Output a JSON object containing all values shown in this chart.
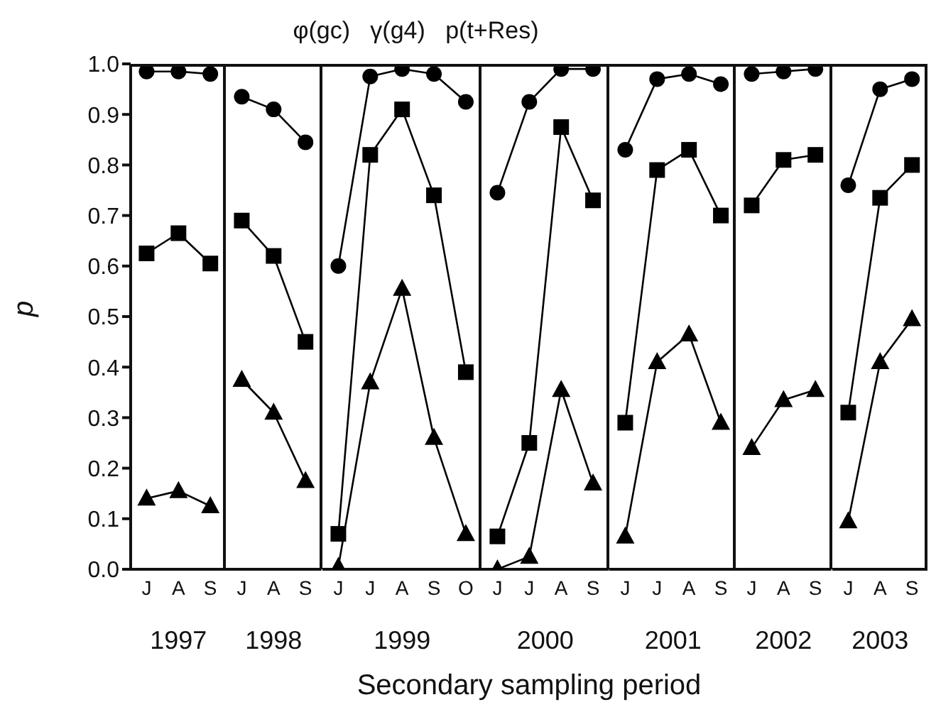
{
  "chart_data": [
    {
      "type": "line",
      "xlabel": "1997",
      "ylabel": "p",
      "categories": [
        "J",
        "A",
        "S"
      ],
      "ylim": [
        0,
        1
      ],
      "yticks": [
        {
          "value": 0,
          "label": "0.0"
        },
        0.1,
        0.2,
        0.3,
        0.4,
        0.5,
        0.6,
        0.7,
        0.8,
        0.9,
        {
          "value": 1,
          "label": "1.0"
        }
      ],
      "grid": false,
      "legend": false,
      "series": [
        {
          "color": "#000000",
          "marker": "circle",
          "values": [
            0.985,
            0.985,
            0.98
          ]
        },
        {
          "color": "#000000",
          "marker": "square",
          "values": [
            0.625,
            0.665,
            0.605
          ]
        },
        {
          "color": "#000000",
          "marker": "triangle",
          "values": [
            0.14,
            0.155,
            0.125
          ]
        }
      ]
    },
    {
      "type": "line",
      "xlabel": "1998",
      "categories": [
        "J",
        "A",
        "S"
      ],
      "ylim": [
        0,
        1
      ],
      "tick_labels": "x",
      "grid": false,
      "legend": false,
      "series": [
        {
          "color": "#000000",
          "marker": "circle",
          "values": [
            0.935,
            0.91,
            0.845
          ]
        },
        {
          "color": "#000000",
          "marker": "square",
          "values": [
            0.69,
            0.62,
            0.45
          ]
        },
        {
          "color": "#000000",
          "marker": "triangle",
          "values": [
            0.375,
            0.31,
            0.175
          ]
        }
      ]
    },
    {
      "type": "line",
      "title": "φ(gc)   γ(g4)   p(t+Res)",
      "xlabel": "1999",
      "categories": [
        "J",
        "J",
        "A",
        "S",
        "O"
      ],
      "ylim": [
        0,
        1
      ],
      "tick_labels": "x",
      "grid": false,
      "legend": false,
      "series": [
        {
          "color": "#000000",
          "marker": "circle",
          "values": [
            0.6,
            0.975,
            0.99,
            0.98,
            0.925
          ]
        },
        {
          "color": "#000000",
          "marker": "square",
          "values": [
            0.07,
            0.82,
            0.91,
            0.74,
            0.39
          ]
        },
        {
          "color": "#000000",
          "marker": "triangle",
          "values": [
            0.005,
            0.37,
            0.555,
            0.26,
            0.07
          ]
        }
      ]
    },
    {
      "type": "line",
      "xlabel": "2000",
      "annotations": [
        "Secondary sampling period"
      ],
      "categories": [
        "J",
        "J",
        "A",
        "S"
      ],
      "ylim": [
        0,
        1
      ],
      "tick_labels": "x",
      "grid": false,
      "legend": false,
      "series": [
        {
          "color": "#000000",
          "marker": "circle",
          "values": [
            0.745,
            0.925,
            0.99,
            0.99
          ]
        },
        {
          "color": "#000000",
          "marker": "square",
          "values": [
            0.065,
            0.25,
            0.875,
            0.73
          ]
        },
        {
          "color": "#000000",
          "marker": "triangle",
          "values": [
            0.0,
            0.025,
            0.355,
            0.17
          ]
        }
      ]
    },
    {
      "type": "line",
      "xlabel": "2001",
      "categories": [
        "J",
        "J",
        "A",
        "S"
      ],
      "ylim": [
        0,
        1
      ],
      "tick_labels": "x",
      "grid": false,
      "legend": false,
      "series": [
        {
          "color": "#000000",
          "marker": "circle",
          "values": [
            0.83,
            0.97,
            0.98,
            0.96
          ]
        },
        {
          "color": "#000000",
          "marker": "square",
          "values": [
            0.29,
            0.79,
            0.83,
            0.7
          ]
        },
        {
          "color": "#000000",
          "marker": "triangle",
          "values": [
            0.065,
            0.41,
            0.465,
            0.29
          ]
        }
      ]
    },
    {
      "type": "line",
      "xlabel": "2002",
      "categories": [
        "J",
        "A",
        "S"
      ],
      "ylim": [
        0,
        1
      ],
      "tick_labels": "x",
      "grid": false,
      "legend": false,
      "series": [
        {
          "color": "#000000",
          "marker": "circle",
          "values": [
            0.98,
            0.985,
            0.99
          ]
        },
        {
          "color": "#000000",
          "marker": "square",
          "values": [
            0.72,
            0.81,
            0.82
          ]
        },
        {
          "color": "#000000",
          "marker": "triangle",
          "values": [
            0.24,
            0.335,
            0.355
          ]
        }
      ]
    },
    {
      "type": "line",
      "xlabel": "2003",
      "categories": [
        "J",
        "A",
        "S"
      ],
      "ylim": [
        0,
        1
      ],
      "tick_labels": "x",
      "grid": false,
      "legend": false,
      "series": [
        {
          "color": "#000000",
          "marker": "circle",
          "values": [
            0.76,
            0.95,
            0.97
          ]
        },
        {
          "color": "#000000",
          "marker": "square",
          "values": [
            0.31,
            0.735,
            0.8
          ]
        },
        {
          "color": "#000000",
          "marker": "triangle",
          "values": [
            0.095,
            0.41,
            0.495
          ]
        }
      ]
    }
  ]
}
